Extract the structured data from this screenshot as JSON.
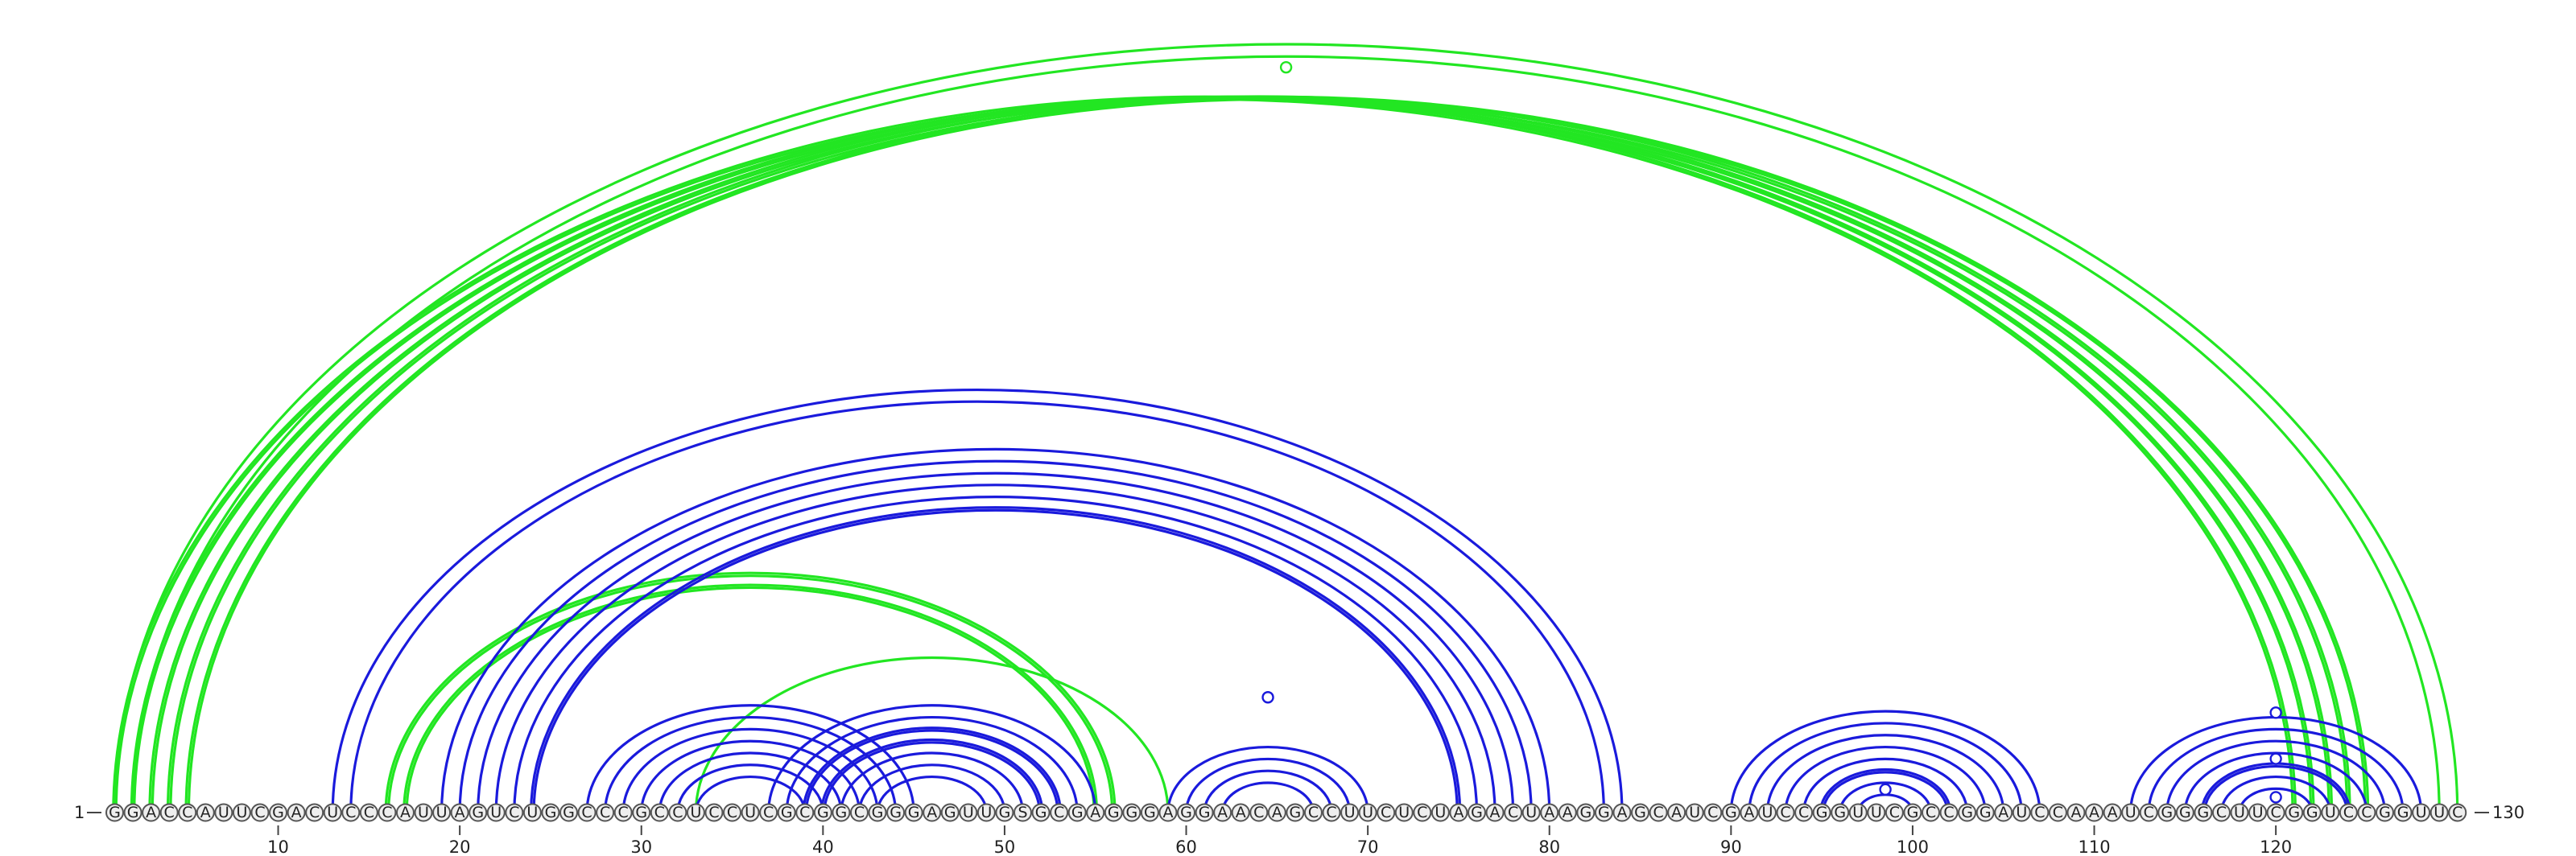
{
  "sequence": "GGACCAUUCGACUCCCAUUAGUCUGGCCCGCCUCCUCGCGGCGGGAGUUGSGCGAGGGAGGAACAGCCUUCUCUAGACUAAGGAGCAUCGAUCCGGUUCGCCGGAUCCAAAUCGGGCUUCGGUCCGGUUC",
  "start_label": "1",
  "end_label": "130",
  "ticks": [
    {
      "pos": 10,
      "label": "10"
    },
    {
      "pos": 20,
      "label": "20"
    },
    {
      "pos": 30,
      "label": "30"
    },
    {
      "pos": 40,
      "label": "40"
    },
    {
      "pos": 50,
      "label": "50"
    },
    {
      "pos": 60,
      "label": "60"
    },
    {
      "pos": 70,
      "label": "70"
    },
    {
      "pos": 80,
      "label": "80"
    },
    {
      "pos": 90,
      "label": "90"
    },
    {
      "pos": 100,
      "label": "100"
    },
    {
      "pos": 110,
      "label": "110"
    },
    {
      "pos": 120,
      "label": "120"
    }
  ],
  "colors": {
    "structure_a": "#1a1adc",
    "structure_b": "#22e622"
  },
  "structure_b": [
    {
      "i": 1,
      "j": 121,
      "w": 2
    },
    {
      "i": 2,
      "j": 122,
      "w": 2
    },
    {
      "i": 3,
      "j": 123,
      "w": 2
    },
    {
      "i": 4,
      "j": 124,
      "w": 2
    },
    {
      "i": 5,
      "j": 125,
      "w": 2
    },
    {
      "i": 1,
      "j": 130,
      "w": 1
    },
    {
      "i": 2,
      "j": 129,
      "w": 1
    },
    {
      "i": 16,
      "j": 56,
      "w": 2
    },
    {
      "i": 17,
      "j": 55,
      "w": 2
    },
    {
      "i": 33,
      "j": 59,
      "w": 1
    }
  ],
  "structure_a": [
    {
      "i": 13,
      "j": 84,
      "w": 1
    },
    {
      "i": 14,
      "j": 83,
      "w": 1
    },
    {
      "i": 19,
      "j": 80,
      "w": 1
    },
    {
      "i": 20,
      "j": 79,
      "w": 1
    },
    {
      "i": 21,
      "j": 78,
      "w": 1
    },
    {
      "i": 22,
      "j": 77,
      "w": 1
    },
    {
      "i": 23,
      "j": 76,
      "w": 1
    },
    {
      "i": 24,
      "j": 75,
      "w": 2
    },
    {
      "i": 27,
      "j": 45,
      "w": 1
    },
    {
      "i": 28,
      "j": 44,
      "w": 1
    },
    {
      "i": 29,
      "j": 43,
      "w": 1
    },
    {
      "i": 30,
      "j": 42,
      "w": 1
    },
    {
      "i": 31,
      "j": 41,
      "w": 1
    },
    {
      "i": 32,
      "j": 40,
      "w": 1
    },
    {
      "i": 33,
      "j": 39,
      "w": 1
    },
    {
      "i": 37,
      "j": 55,
      "w": 1
    },
    {
      "i": 38,
      "j": 54,
      "w": 1
    },
    {
      "i": 39,
      "j": 53,
      "w": 2
    },
    {
      "i": 40,
      "j": 52,
      "w": 2
    },
    {
      "i": 41,
      "j": 51,
      "w": 1
    },
    {
      "i": 42,
      "j": 50,
      "w": 1
    },
    {
      "i": 43,
      "j": 49,
      "w": 1
    },
    {
      "i": 59,
      "j": 70,
      "w": 1
    },
    {
      "i": 60,
      "j": 69,
      "w": 1
    },
    {
      "i": 61,
      "j": 68,
      "w": 1
    },
    {
      "i": 62,
      "j": 67,
      "w": 1
    },
    {
      "i": 90,
      "j": 107,
      "w": 1
    },
    {
      "i": 91,
      "j": 106,
      "w": 1
    },
    {
      "i": 92,
      "j": 105,
      "w": 1
    },
    {
      "i": 93,
      "j": 104,
      "w": 1
    },
    {
      "i": 94,
      "j": 103,
      "w": 1
    },
    {
      "i": 95,
      "j": 102,
      "w": 2
    },
    {
      "i": 96,
      "j": 101,
      "w": 1
    },
    {
      "i": 97,
      "j": 100,
      "w": 1
    },
    {
      "i": 112,
      "j": 128,
      "w": 1
    },
    {
      "i": 113,
      "j": 127,
      "w": 1
    },
    {
      "i": 114,
      "j": 126,
      "w": 1
    },
    {
      "i": 115,
      "j": 125,
      "w": 1
    },
    {
      "i": 116,
      "j": 124,
      "w": 2
    },
    {
      "i": 117,
      "j": 123,
      "w": 1
    },
    {
      "i": 118,
      "j": 122,
      "w": 1
    }
  ],
  "markers": [
    {
      "pos": 65.5,
      "level": 0.97,
      "structure": "structure_b"
    },
    {
      "pos": 64.5,
      "level": 0.15,
      "structure": "structure_a"
    },
    {
      "pos": 98.5,
      "level": 0.03,
      "structure": "structure_a"
    },
    {
      "pos": 120.0,
      "level": 0.13,
      "structure": "structure_a"
    },
    {
      "pos": 120.0,
      "level": 0.07,
      "structure": "structure_a"
    },
    {
      "pos": 120.0,
      "level": 0.02,
      "structure": "structure_a"
    }
  ]
}
